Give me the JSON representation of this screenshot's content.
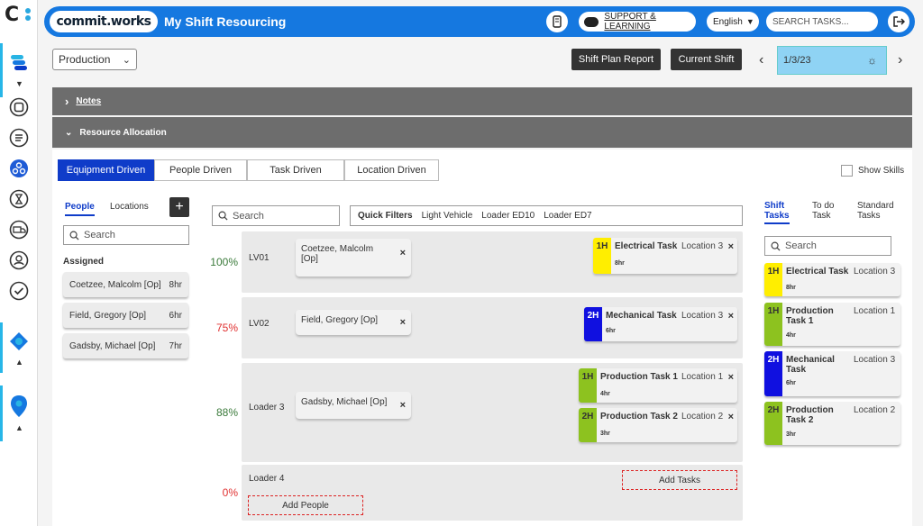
{
  "app": {
    "brand": "commit.works",
    "title": "My Shift Resourcing"
  },
  "header": {
    "support": "SUPPORT & LEARNING",
    "language": "English",
    "search_placeholder": "SEARCH TASKS..."
  },
  "toolbar": {
    "department": "Production",
    "report": "Shift Plan Report",
    "current_shift": "Current Shift",
    "date": "1/3/23"
  },
  "sections": {
    "notes": "Notes",
    "allocation": "Resource Allocation"
  },
  "modes": [
    "Equipment Driven",
    "People Driven",
    "Task Driven",
    "Location Driven"
  ],
  "show_skills": "Show Skills",
  "left": {
    "tab_people": "People",
    "tab_locations": "Locations",
    "search": "Search",
    "assigned": "Assigned",
    "people": [
      {
        "name": "Coetzee, Malcolm [Op]",
        "hours": "8hr"
      },
      {
        "name": "Field, Gregory [Op]",
        "hours": "6hr"
      },
      {
        "name": "Gadsby, Michael [Op]",
        "hours": "7hr"
      }
    ]
  },
  "center": {
    "search": "Search",
    "quick_filters": "Quick Filters",
    "filters": [
      "Light Vehicle",
      "Loader ED10",
      "Loader ED7"
    ],
    "rows": [
      {
        "pct": "100%",
        "name": "LV01",
        "person": "Coetzee, Malcolm [Op]",
        "tasks": [
          {
            "code": "1H",
            "name": "Electrical Task",
            "loc": "Location 3",
            "hr": "8hr"
          }
        ]
      },
      {
        "pct": "75%",
        "name": "LV02",
        "person": "Field, Gregory [Op]",
        "tasks": [
          {
            "code": "2H",
            "name": "Mechanical Task",
            "loc": "Location 3",
            "hr": "6hr"
          }
        ]
      },
      {
        "pct": "88%",
        "name": "Loader 3",
        "person": "Gadsby, Michael [Op]",
        "tasks": [
          {
            "code": "1H",
            "name": "Production Task 1",
            "loc": "Location 1",
            "hr": "4hr"
          },
          {
            "code": "2H",
            "name": "Production Task 2",
            "loc": "Location 2",
            "hr": "3hr"
          }
        ]
      },
      {
        "pct": "0%",
        "name": "Loader 4",
        "add_tasks": "Add Tasks",
        "add_people": "Add People"
      }
    ]
  },
  "right": {
    "tabs": [
      [
        "Shift",
        "Tasks"
      ],
      [
        "To do",
        "Task"
      ],
      [
        "Standard",
        "Tasks"
      ]
    ],
    "search": "Search",
    "tasks": [
      {
        "code": "1H",
        "name": "Electrical Task",
        "loc": "Location 3",
        "hr": "8hr"
      },
      {
        "code": "1H",
        "name": "Production Task 1",
        "loc": "Location 1",
        "hr": "4hr"
      },
      {
        "code": "2H",
        "name": "Mechanical Task",
        "loc": "Location 3",
        "hr": "6hr"
      },
      {
        "code": "2H",
        "name": "Production Task 2",
        "loc": "Location 2",
        "hr": "3hr"
      }
    ]
  },
  "colors": {
    "yellow": "#ffee00",
    "blue": "#1010e0",
    "green": "#8dc21f",
    "header": "#1578e0",
    "pct_green": "#3a7a3a",
    "pct_red": "#e03030"
  }
}
